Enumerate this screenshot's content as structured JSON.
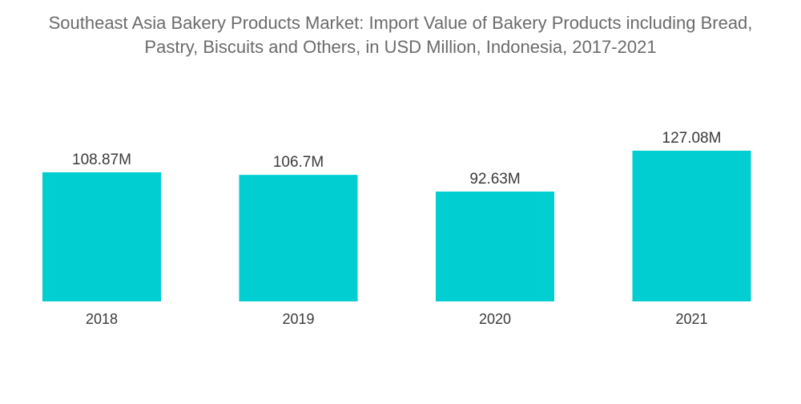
{
  "title": "Southeast Asia Bakery Products Market: Import Value of Bakery Products including Bread,\nPastry, Biscuits and Others, in USD Million, Indonesia, 2017-2021",
  "chart_data": {
    "type": "bar",
    "title": "Southeast Asia Bakery Products Market: Import Value of Bakery Products including Bread, Pastry, Biscuits and Others, in USD Million, Indonesia, 2017-2021",
    "xlabel": "",
    "ylabel": "",
    "categories": [
      "2018",
      "2019",
      "2020",
      "2021"
    ],
    "values": [
      108.87,
      106.7,
      92.63,
      127.08
    ],
    "data_labels": [
      "108.87M",
      "106.7M",
      "92.63M",
      "127.08M"
    ],
    "ylim": [
      0,
      127.08
    ],
    "grid": false,
    "legend": "none",
    "bar_color": "#00CED1"
  }
}
